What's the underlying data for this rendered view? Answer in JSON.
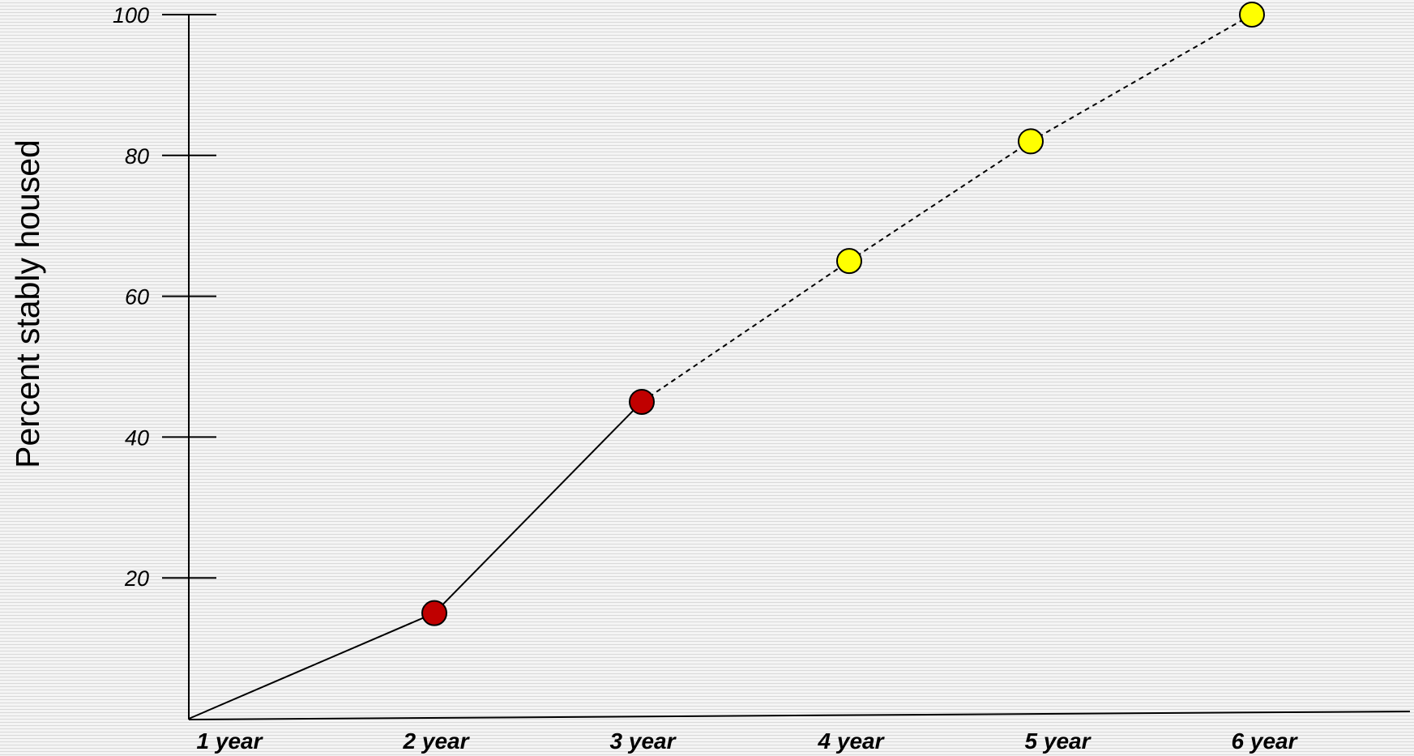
{
  "chart_data": {
    "type": "line",
    "categories": [
      "1 year",
      "2 year",
      "3 year",
      "4 year",
      "5 year",
      "6 year"
    ],
    "series": [
      {
        "values": [
          0,
          15,
          45,
          65,
          82,
          100
        ],
        "line_styles": [
          "solid",
          "solid",
          "dashed",
          "dashed",
          "dashed"
        ],
        "marker_colors": [
          null,
          "#c00000",
          "#c00000",
          "#ffff00",
          "#ffff00",
          "#ffff00"
        ]
      }
    ],
    "yticks": [
      20,
      40,
      60,
      80,
      100
    ],
    "xlabel": "",
    "ylabel": "Percent stably housed",
    "ylim": [
      0,
      100
    ],
    "grid": false,
    "line_color": "#000000",
    "marker_stroke": "#000000"
  }
}
